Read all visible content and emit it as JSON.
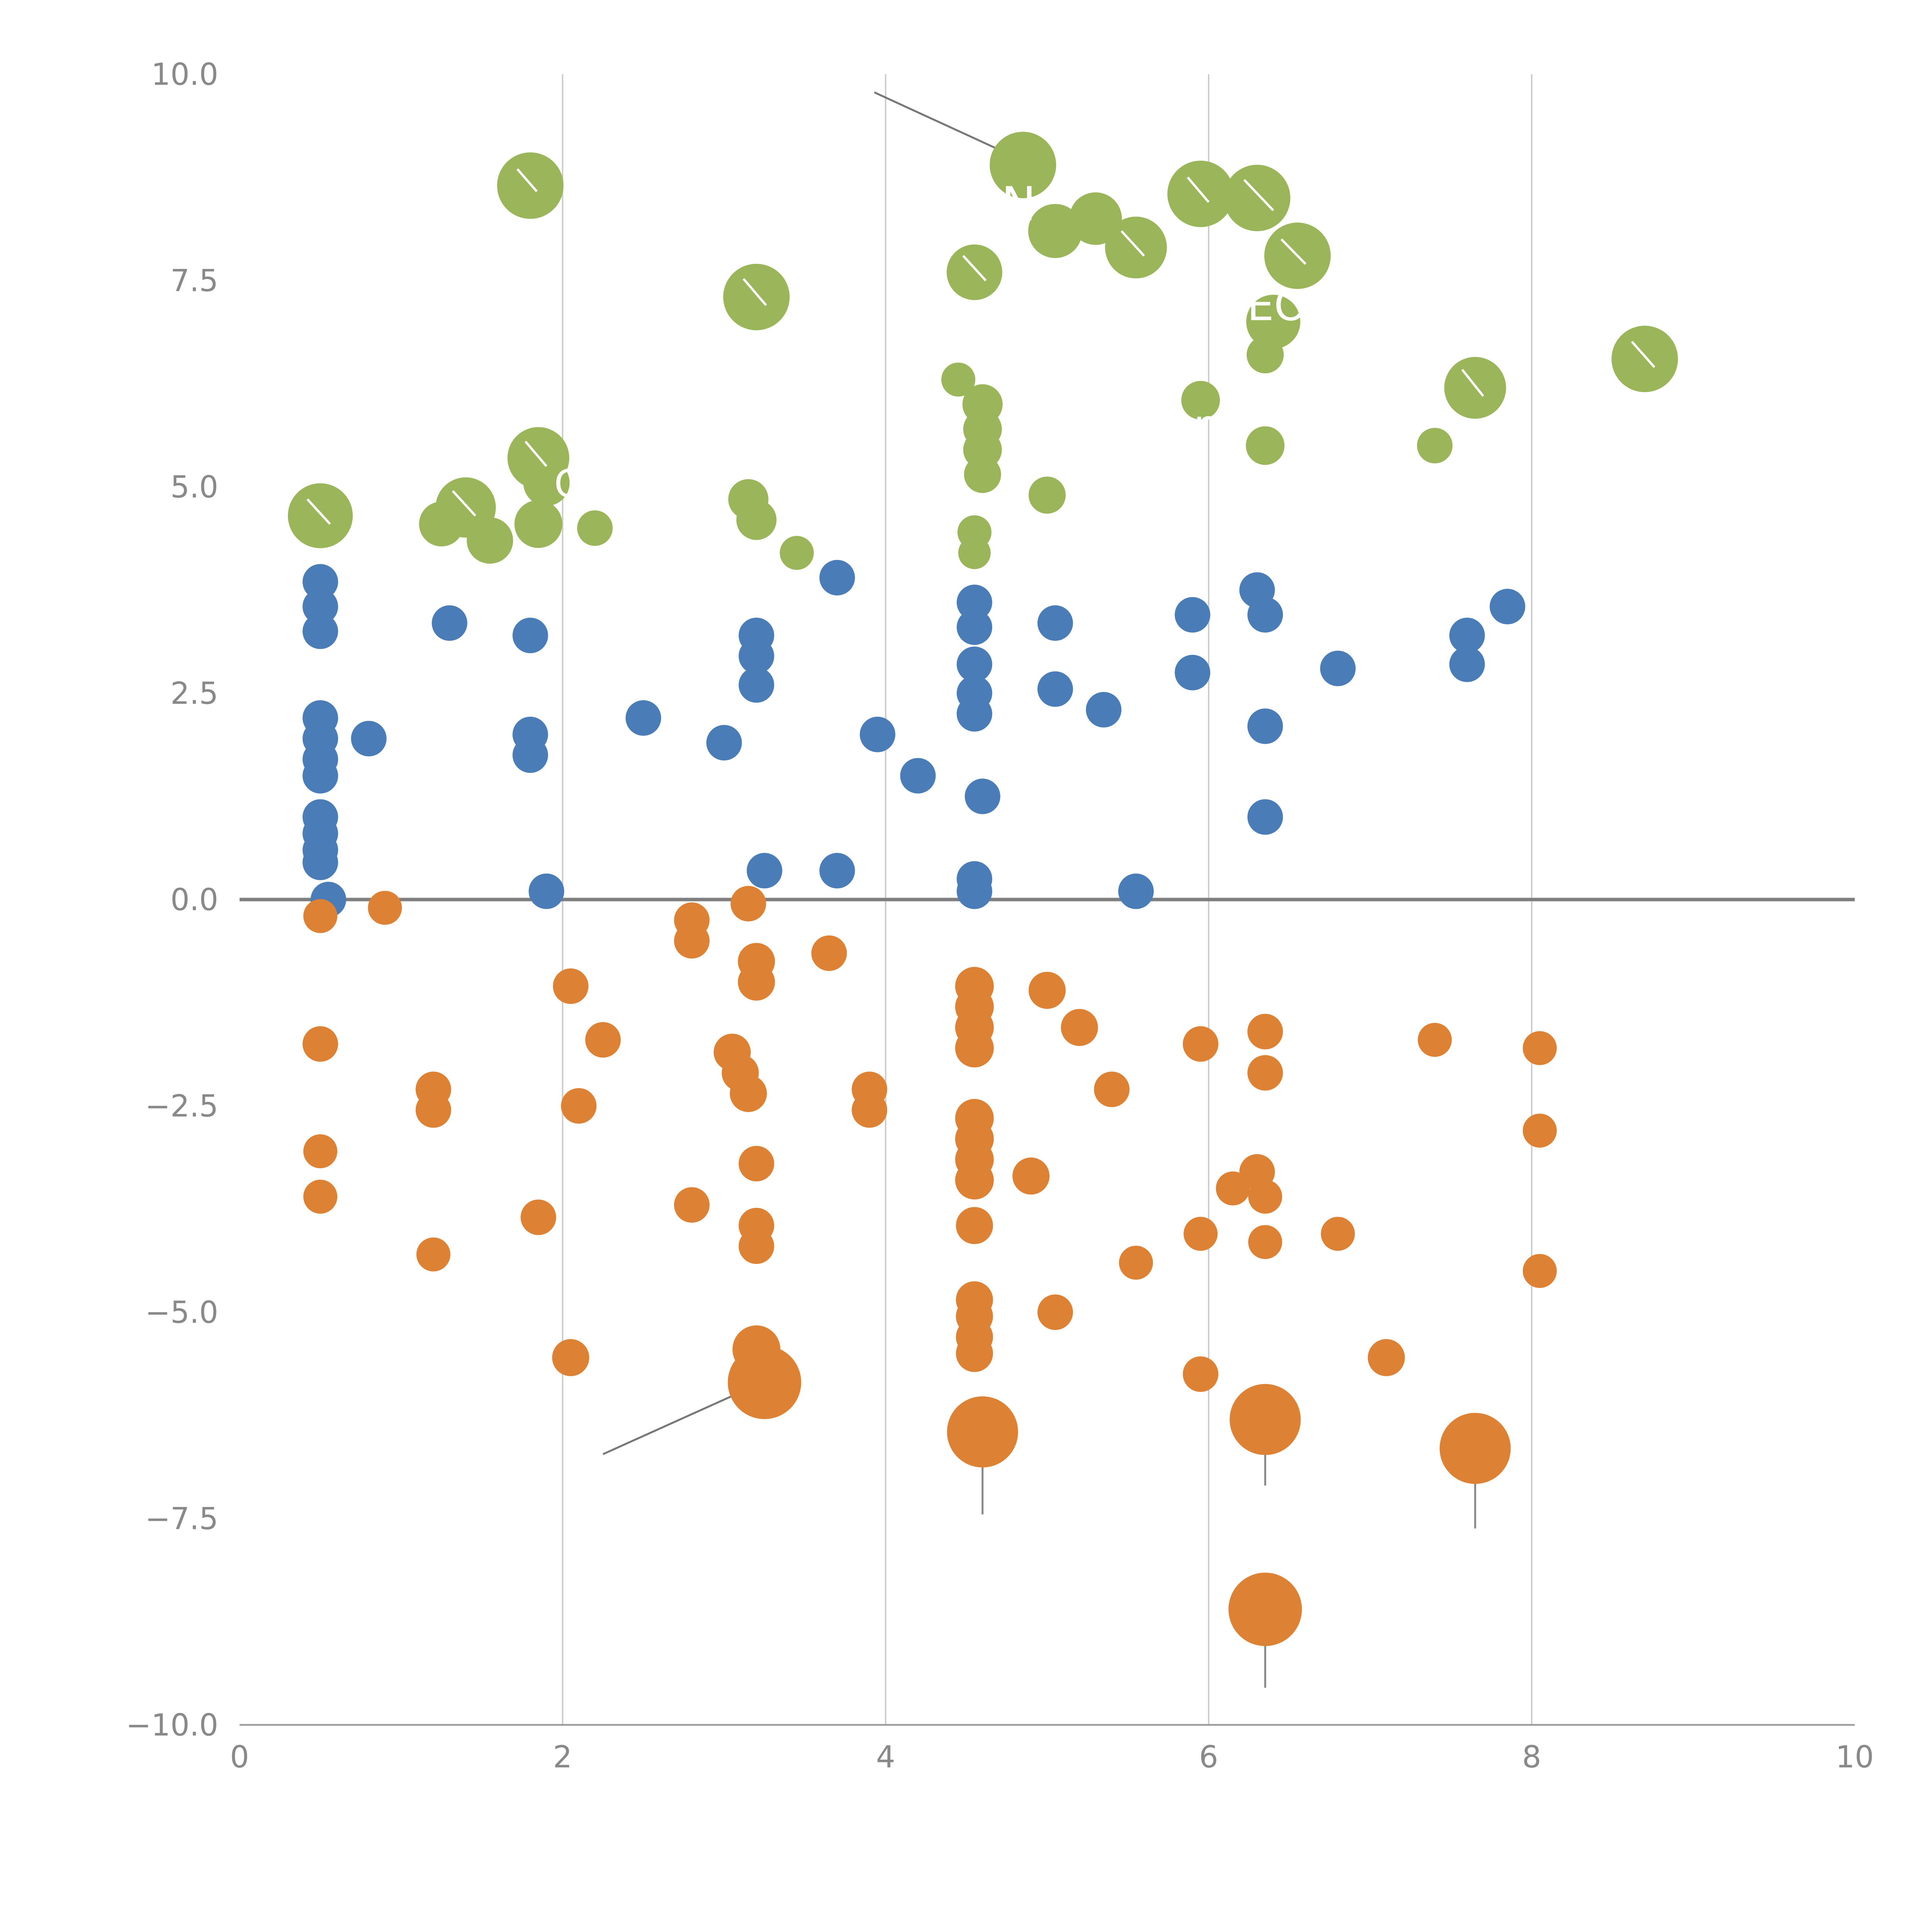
{
  "chart_data": {
    "type": "scatter",
    "title": "",
    "xlabel": "",
    "ylabel": "",
    "xlim": [
      0,
      10
    ],
    "ylim": [
      -10,
      10
    ],
    "xticks": [
      0,
      2,
      4,
      6,
      8,
      10
    ],
    "yticks": [
      10.0,
      7.5,
      5.0,
      2.5,
      0.0,
      -2.5,
      -5.0,
      -7.5,
      -10.0
    ],
    "grid": "vertical-only",
    "zero_line": true,
    "legend": "none",
    "colors": {
      "green": "#9ab55a",
      "blue": "#4a7db8",
      "orange": "#dd8134",
      "grid": "#c9c9c9",
      "zero_line": "#7f7f7f",
      "spine": "#9a9a9a",
      "tick_label": "#898989",
      "leader": "#777777",
      "error_bar": "#888888",
      "annotation_text": "#ffffff"
    },
    "series": [
      {
        "name": "green",
        "color": "#9ab55a",
        "points": [
          [
            1.8,
            8.65,
            86
          ],
          [
            4.85,
            8.9,
            86
          ],
          [
            5.05,
            8.1,
            70
          ],
          [
            5.3,
            8.25,
            68
          ],
          [
            5.55,
            7.9,
            80
          ],
          [
            5.95,
            8.55,
            86
          ],
          [
            6.3,
            8.5,
            86
          ],
          [
            6.55,
            7.8,
            86
          ],
          [
            4.55,
            7.6,
            72
          ],
          [
            3.2,
            7.3,
            86
          ],
          [
            6.4,
            7.0,
            70
          ],
          [
            6.35,
            6.6,
            48
          ],
          [
            8.7,
            6.55,
            86
          ],
          [
            7.65,
            6.2,
            80
          ],
          [
            4.45,
            6.3,
            44
          ],
          [
            4.6,
            6.0,
            52
          ],
          [
            5.95,
            6.05,
            50
          ],
          [
            4.6,
            5.7,
            50
          ],
          [
            4.6,
            5.45,
            50
          ],
          [
            6.35,
            5.5,
            50
          ],
          [
            7.4,
            5.5,
            46
          ],
          [
            4.6,
            5.15,
            48
          ],
          [
            1.85,
            5.35,
            80
          ],
          [
            1.9,
            5.05,
            60
          ],
          [
            0.5,
            4.65,
            84
          ],
          [
            1.4,
            4.75,
            78
          ],
          [
            1.25,
            4.55,
            58
          ],
          [
            1.55,
            4.35,
            60
          ],
          [
            1.85,
            4.55,
            62
          ],
          [
            2.2,
            4.5,
            46
          ],
          [
            3.15,
            4.85,
            52
          ],
          [
            3.2,
            4.6,
            52
          ],
          [
            5.0,
            4.9,
            48
          ],
          [
            3.45,
            4.2,
            44
          ],
          [
            4.55,
            4.45,
            44
          ],
          [
            4.55,
            4.2,
            42
          ]
        ]
      },
      {
        "name": "blue",
        "color": "#4a7db8",
        "points": [
          [
            0.5,
            3.85,
            46
          ],
          [
            0.5,
            3.55,
            46
          ],
          [
            0.5,
            3.25,
            46
          ],
          [
            1.3,
            3.35,
            46
          ],
          [
            1.8,
            3.2,
            46
          ],
          [
            3.2,
            3.2,
            46
          ],
          [
            3.2,
            2.95,
            46
          ],
          [
            3.2,
            2.6,
            46
          ],
          [
            3.7,
            3.9,
            46
          ],
          [
            4.55,
            3.6,
            46
          ],
          [
            4.55,
            3.3,
            46
          ],
          [
            5.05,
            3.35,
            46
          ],
          [
            5.9,
            3.45,
            46
          ],
          [
            6.3,
            3.75,
            46
          ],
          [
            6.35,
            3.45,
            46
          ],
          [
            7.85,
            3.55,
            46
          ],
          [
            7.6,
            3.2,
            46
          ],
          [
            7.6,
            2.85,
            46
          ],
          [
            4.55,
            2.85,
            46
          ],
          [
            4.55,
            2.5,
            46
          ],
          [
            4.55,
            2.25,
            46
          ],
          [
            5.05,
            2.55,
            46
          ],
          [
            5.35,
            2.3,
            46
          ],
          [
            5.9,
            2.75,
            46
          ],
          [
            6.8,
            2.8,
            46
          ],
          [
            6.35,
            2.1,
            46
          ],
          [
            0.5,
            2.2,
            46
          ],
          [
            0.5,
            1.95,
            46
          ],
          [
            0.8,
            1.95,
            46
          ],
          [
            0.5,
            1.7,
            46
          ],
          [
            0.5,
            1.5,
            46
          ],
          [
            1.8,
            2.0,
            46
          ],
          [
            1.8,
            1.75,
            46
          ],
          [
            2.5,
            2.2,
            46
          ],
          [
            3.0,
            1.9,
            46
          ],
          [
            3.95,
            2.0,
            46
          ],
          [
            4.2,
            1.5,
            46
          ],
          [
            4.6,
            1.25,
            46
          ],
          [
            6.35,
            1.0,
            46
          ],
          [
            0.5,
            1.0,
            46
          ],
          [
            0.5,
            0.8,
            46
          ],
          [
            0.5,
            0.6,
            46
          ],
          [
            0.5,
            0.45,
            46
          ],
          [
            3.25,
            0.35,
            46
          ],
          [
            3.7,
            0.35,
            46
          ],
          [
            4.55,
            0.25,
            46
          ],
          [
            4.55,
            0.1,
            46
          ],
          [
            5.55,
            0.1,
            46
          ],
          [
            1.9,
            0.1,
            46
          ],
          [
            0.55,
            0.0,
            46
          ]
        ]
      },
      {
        "name": "orange",
        "color": "#dd8134",
        "points": [
          [
            0.5,
            -0.2,
            44
          ],
          [
            0.9,
            -0.1,
            44
          ],
          [
            2.8,
            -0.25,
            46
          ],
          [
            2.8,
            -0.5,
            46
          ],
          [
            3.15,
            -0.05,
            46
          ],
          [
            3.2,
            -0.75,
            48
          ],
          [
            3.2,
            -1.0,
            48
          ],
          [
            3.65,
            -0.65,
            46
          ],
          [
            2.05,
            -1.05,
            46
          ],
          [
            4.55,
            -1.05,
            50
          ],
          [
            4.55,
            -1.3,
            50
          ],
          [
            5.0,
            -1.1,
            48
          ],
          [
            4.55,
            -1.55,
            50
          ],
          [
            4.55,
            -1.8,
            50
          ],
          [
            5.2,
            -1.55,
            48
          ],
          [
            2.25,
            -1.7,
            46
          ],
          [
            0.5,
            -1.75,
            46
          ],
          [
            3.05,
            -1.85,
            48
          ],
          [
            5.95,
            -1.75,
            46
          ],
          [
            6.35,
            -1.6,
            46
          ],
          [
            7.4,
            -1.7,
            44
          ],
          [
            8.05,
            -1.8,
            44
          ],
          [
            3.1,
            -2.1,
            48
          ],
          [
            3.15,
            -2.35,
            48
          ],
          [
            1.2,
            -2.3,
            46
          ],
          [
            1.2,
            -2.55,
            46
          ],
          [
            2.1,
            -2.5,
            46
          ],
          [
            3.9,
            -2.3,
            46
          ],
          [
            3.9,
            -2.55,
            46
          ],
          [
            5.4,
            -2.3,
            46
          ],
          [
            6.35,
            -2.1,
            46
          ],
          [
            4.55,
            -2.65,
            50
          ],
          [
            4.55,
            -2.9,
            50
          ],
          [
            8.05,
            -2.8,
            44
          ],
          [
            0.5,
            -3.05,
            44
          ],
          [
            4.55,
            -3.15,
            50
          ],
          [
            4.55,
            -3.4,
            50
          ],
          [
            3.2,
            -3.2,
            46
          ],
          [
            4.9,
            -3.35,
            48
          ],
          [
            0.5,
            -3.6,
            44
          ],
          [
            2.8,
            -3.7,
            46
          ],
          [
            6.3,
            -3.3,
            46
          ],
          [
            6.15,
            -3.5,
            44
          ],
          [
            6.35,
            -3.6,
            44
          ],
          [
            4.55,
            -3.95,
            48
          ],
          [
            3.2,
            -3.95,
            46
          ],
          [
            1.85,
            -3.85,
            46
          ],
          [
            5.95,
            -4.05,
            44
          ],
          [
            6.35,
            -4.15,
            44
          ],
          [
            6.8,
            -4.05,
            44
          ],
          [
            3.2,
            -4.2,
            46
          ],
          [
            1.2,
            -4.3,
            44
          ],
          [
            5.55,
            -4.4,
            44
          ],
          [
            8.05,
            -4.5,
            44
          ],
          [
            4.55,
            -4.85,
            48
          ],
          [
            4.55,
            -5.05,
            48
          ],
          [
            5.05,
            -5.0,
            46
          ],
          [
            4.55,
            -5.3,
            48
          ],
          [
            4.55,
            -5.5,
            48
          ],
          [
            2.05,
            -5.55,
            48
          ],
          [
            3.2,
            -5.45,
            62
          ],
          [
            3.25,
            -5.85,
            95
          ],
          [
            7.1,
            -5.55,
            48
          ],
          [
            5.95,
            -5.75,
            46
          ],
          [
            4.6,
            -6.45,
            92
          ],
          [
            6.35,
            -6.3,
            92
          ],
          [
            7.65,
            -6.65,
            92
          ],
          [
            6.35,
            -8.6,
            95
          ]
        ]
      }
    ],
    "error_bars": [
      {
        "x": 4.6,
        "y1": -6.45,
        "y2": -7.45
      },
      {
        "x": 6.35,
        "y1": -6.3,
        "y2": -7.1
      },
      {
        "x": 7.65,
        "y1": -6.65,
        "y2": -7.62
      },
      {
        "x": 6.35,
        "y1": -8.6,
        "y2": -9.55
      }
    ],
    "leader_lines": [
      {
        "x1": 3.93,
        "y1": 9.78,
        "x2": 4.82,
        "y2": 8.98
      },
      {
        "x1": 2.25,
        "y1": -6.72,
        "x2": 3.18,
        "y2": -5.9
      }
    ],
    "white_leader_lines": [
      {
        "x1": 1.72,
        "y1": 8.85,
        "x2": 1.84,
        "y2": 8.58
      },
      {
        "x1": 0.42,
        "y1": 4.85,
        "x2": 0.56,
        "y2": 4.55
      },
      {
        "x1": 1.32,
        "y1": 4.95,
        "x2": 1.46,
        "y2": 4.65
      },
      {
        "x1": 5.87,
        "y1": 8.75,
        "x2": 6.0,
        "y2": 8.45
      },
      {
        "x1": 6.22,
        "y1": 8.72,
        "x2": 6.4,
        "y2": 8.35
      },
      {
        "x1": 7.57,
        "y1": 6.42,
        "x2": 7.7,
        "y2": 6.1
      },
      {
        "x1": 8.62,
        "y1": 6.76,
        "x2": 8.76,
        "y2": 6.45
      },
      {
        "x1": 3.12,
        "y1": 7.52,
        "x2": 3.26,
        "y2": 7.2
      },
      {
        "x1": 1.77,
        "y1": 5.55,
        "x2": 1.9,
        "y2": 5.25
      },
      {
        "x1": 4.48,
        "y1": 7.8,
        "x2": 4.62,
        "y2": 7.5
      },
      {
        "x1": 5.46,
        "y1": 8.1,
        "x2": 5.6,
        "y2": 7.8
      },
      {
        "x1": 6.45,
        "y1": 8.0,
        "x2": 6.6,
        "y2": 7.7
      }
    ],
    "annotations": [
      {
        "text": "MLN",
        "x": 4.62,
        "y": 8.43,
        "size": 120
      },
      {
        "text": "EOF",
        "x": 6.5,
        "y": 7.2,
        "size": 110
      },
      {
        "text": "ne",
        "x": 6.07,
        "y": 5.75,
        "size": 110
      },
      {
        "text": "G",
        "x": 2.04,
        "y": 5.04,
        "size": 100
      }
    ]
  },
  "axes": {
    "x_tick_labels": [
      "0",
      "2",
      "4",
      "6",
      "8",
      "10"
    ],
    "y_tick_labels": [
      "10.0",
      "7.5",
      "5.0",
      "2.5",
      "0.0",
      "−2.5",
      "−5.0",
      "−7.5",
      "−10.0"
    ]
  }
}
